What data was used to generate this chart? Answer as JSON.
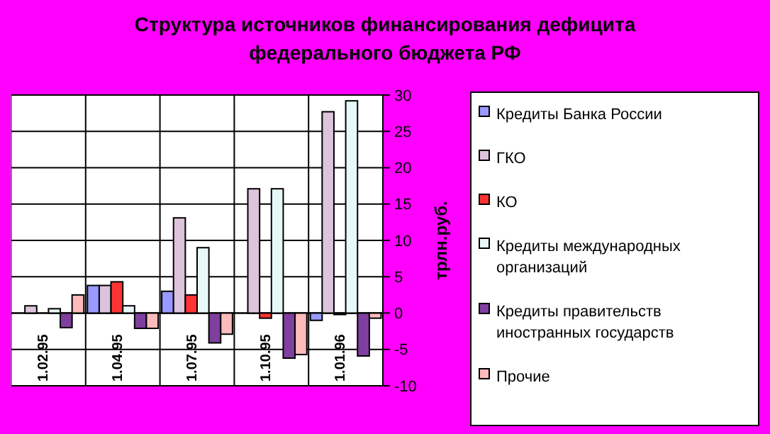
{
  "chart_data": {
    "type": "bar",
    "title": "Структура источников финансирования дефицита федерального бюджета РФ",
    "ylabel": "трлн.руб.",
    "categories": [
      "1.02.95",
      "1.04.95",
      "1.07.95",
      "1.10.95",
      "1.01.96"
    ],
    "series": [
      {
        "name": "Кредиты Банка России",
        "color": "#9999ff",
        "values": [
          0,
          3.8,
          3.0,
          0,
          -1.0
        ]
      },
      {
        "name": "ГКО",
        "color": "#dcc4dc",
        "values": [
          1.0,
          3.8,
          13.1,
          17.1,
          27.7
        ]
      },
      {
        "name": "КО",
        "color": "#ff3333",
        "values": [
          0,
          4.3,
          2.5,
          -0.7,
          -0.2
        ]
      },
      {
        "name": "Кредиты международных организаций",
        "color": "#e8f8f8",
        "values": [
          0.6,
          1.0,
          9.0,
          17.1,
          29.2
        ]
      },
      {
        "name": "Кредиты правительств иностранных государств",
        "color": "#7f3f9f",
        "values": [
          -2.0,
          -2.1,
          -4.1,
          -6.2,
          -5.9
        ]
      },
      {
        "name": "Прочие",
        "color": "#ffbbbb",
        "values": [
          2.5,
          -2.1,
          -2.9,
          -5.7,
          -0.7
        ]
      }
    ],
    "ylim": [
      -10,
      30
    ],
    "yticks": [
      -10,
      -5,
      0,
      5,
      10,
      15,
      20,
      25,
      30
    ],
    "grid": true,
    "legend": "right"
  }
}
